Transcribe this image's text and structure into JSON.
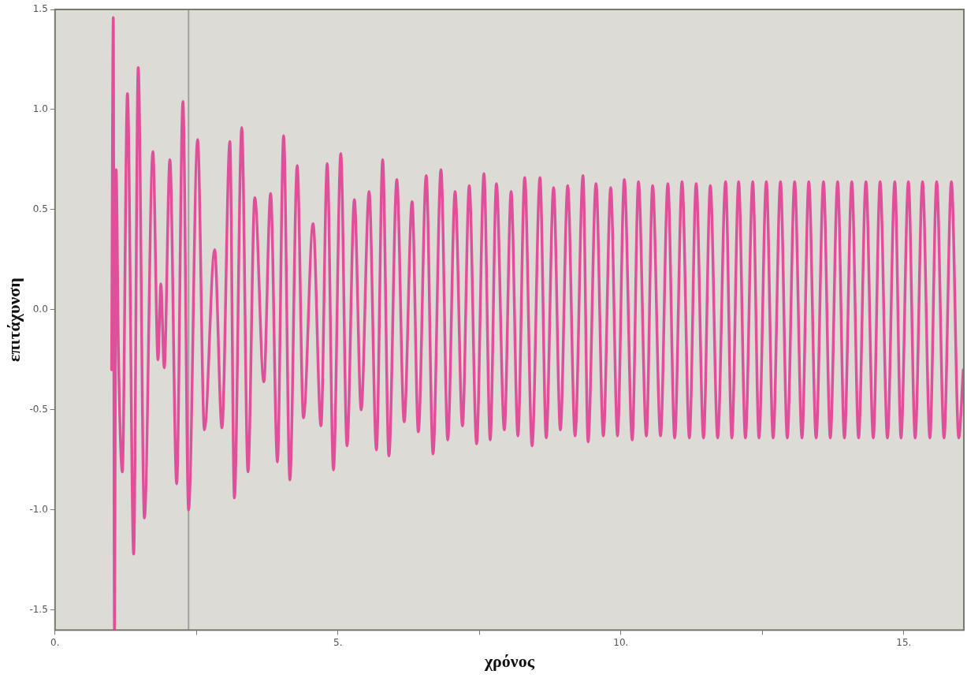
{
  "chart_data": {
    "type": "line",
    "xlabel": "χρόνος",
    "ylabel": "επιτάχυνση",
    "xlim": [
      0,
      16.06
    ],
    "ylim": [
      -1.6,
      1.5
    ],
    "xticks": [
      {
        "value": 0,
        "label": "0."
      },
      {
        "value": 2.5,
        "label": null
      },
      {
        "value": 5,
        "label": "5."
      },
      {
        "value": 7.5,
        "label": null
      },
      {
        "value": 10,
        "label": "10."
      },
      {
        "value": 12.5,
        "label": null
      },
      {
        "value": 15,
        "label": "15."
      }
    ],
    "yticks": [
      {
        "value": -1.5,
        "label": "-1.5"
      },
      {
        "value": -1,
        "label": "-1.0"
      },
      {
        "value": -0.5,
        "label": "-0.5"
      },
      {
        "value": 0,
        "label": "0.0"
      },
      {
        "value": 0.5,
        "label": "0.5"
      },
      {
        "value": 1,
        "label": "1.0"
      },
      {
        "value": 1.5,
        "label": "1.5"
      }
    ],
    "legend": false,
    "marker": "none",
    "line_style": "solid",
    "ref_lines": [
      {
        "axis": "x",
        "value": 2.36,
        "color": "#a0a0a0"
      }
    ],
    "series": [
      {
        "color": "#e0509a",
        "x": [
          1.0,
          1.03,
          1.05,
          1.08,
          1.12,
          1.19,
          1.28,
          1.39,
          1.47,
          1.58,
          1.73,
          1.82,
          1.87,
          1.93,
          2.03,
          2.15,
          2.26,
          2.36,
          2.52,
          2.64,
          2.82,
          2.95,
          3.09,
          3.17,
          3.3,
          3.41,
          3.53,
          3.69,
          3.81,
          3.93,
          4.04,
          4.15,
          4.28,
          4.39,
          4.56,
          4.7,
          4.81,
          4.92,
          5.05,
          5.16,
          5.29,
          5.41,
          5.55,
          5.68,
          5.79,
          5.9,
          6.04,
          6.17,
          6.31,
          6.42,
          6.56,
          6.68,
          6.82,
          6.94,
          7.07,
          7.2,
          7.32,
          7.45,
          7.58,
          7.69,
          7.8,
          7.94,
          8.06,
          8.18,
          8.3,
          8.43,
          8.57,
          8.68,
          8.81,
          8.93,
          9.06,
          9.19,
          9.33,
          9.42,
          9.56,
          9.69,
          9.82,
          9.94,
          10.06,
          10.2,
          10.31,
          10.45,
          10.56,
          10.7,
          10.83,
          10.95,
          11.08,
          11.21,
          11.33,
          11.46,
          11.58,
          11.71,
          11.85,
          11.96,
          12.08,
          12.2,
          12.33,
          12.44,
          12.57,
          12.69,
          12.82,
          12.94,
          13.07,
          13.2,
          13.32,
          13.45,
          13.58,
          13.7,
          13.83,
          13.95,
          14.08,
          14.2,
          14.33,
          14.46,
          14.58,
          14.71,
          14.84,
          14.95,
          15.08,
          15.2,
          15.33,
          15.46,
          15.58,
          15.71,
          15.84,
          15.97,
          16.05
        ],
        "values": [
          -0.3,
          1.46,
          -1.6,
          0.7,
          -0.2,
          -0.81,
          1.08,
          -1.22,
          1.21,
          -1.04,
          0.79,
          -0.25,
          0.13,
          -0.29,
          0.75,
          -0.87,
          1.04,
          -1.0,
          0.85,
          -0.6,
          0.3,
          -0.59,
          0.84,
          -0.94,
          0.91,
          -0.81,
          0.56,
          -0.36,
          0.58,
          -0.76,
          0.87,
          -0.85,
          0.72,
          -0.54,
          0.43,
          -0.58,
          0.73,
          -0.8,
          0.78,
          -0.68,
          0.55,
          -0.5,
          0.59,
          -0.7,
          0.75,
          -0.73,
          0.65,
          -0.56,
          0.54,
          -0.61,
          0.67,
          -0.72,
          0.7,
          -0.65,
          0.59,
          -0.58,
          0.62,
          -0.67,
          0.68,
          -0.65,
          0.63,
          -0.6,
          0.59,
          -0.63,
          0.66,
          -0.68,
          0.66,
          -0.64,
          0.61,
          -0.6,
          0.62,
          -0.63,
          0.67,
          -0.66,
          0.63,
          -0.63,
          0.61,
          -0.63,
          0.65,
          -0.65,
          0.64,
          -0.63,
          0.62,
          -0.63,
          0.63,
          -0.64,
          0.64,
          -0.64,
          0.63,
          -0.64,
          0.62,
          -0.64,
          0.64,
          -0.64,
          0.64,
          -0.64,
          0.64,
          -0.64,
          0.64,
          -0.64,
          0.64,
          -0.64,
          0.64,
          -0.64,
          0.64,
          -0.64,
          0.64,
          -0.64,
          0.64,
          -0.64,
          0.64,
          -0.64,
          0.64,
          -0.64,
          0.64,
          -0.64,
          0.64,
          -0.64,
          0.64,
          -0.64,
          0.64,
          -0.64,
          0.64,
          -0.64,
          0.64,
          -0.64,
          -0.3
        ]
      }
    ]
  }
}
